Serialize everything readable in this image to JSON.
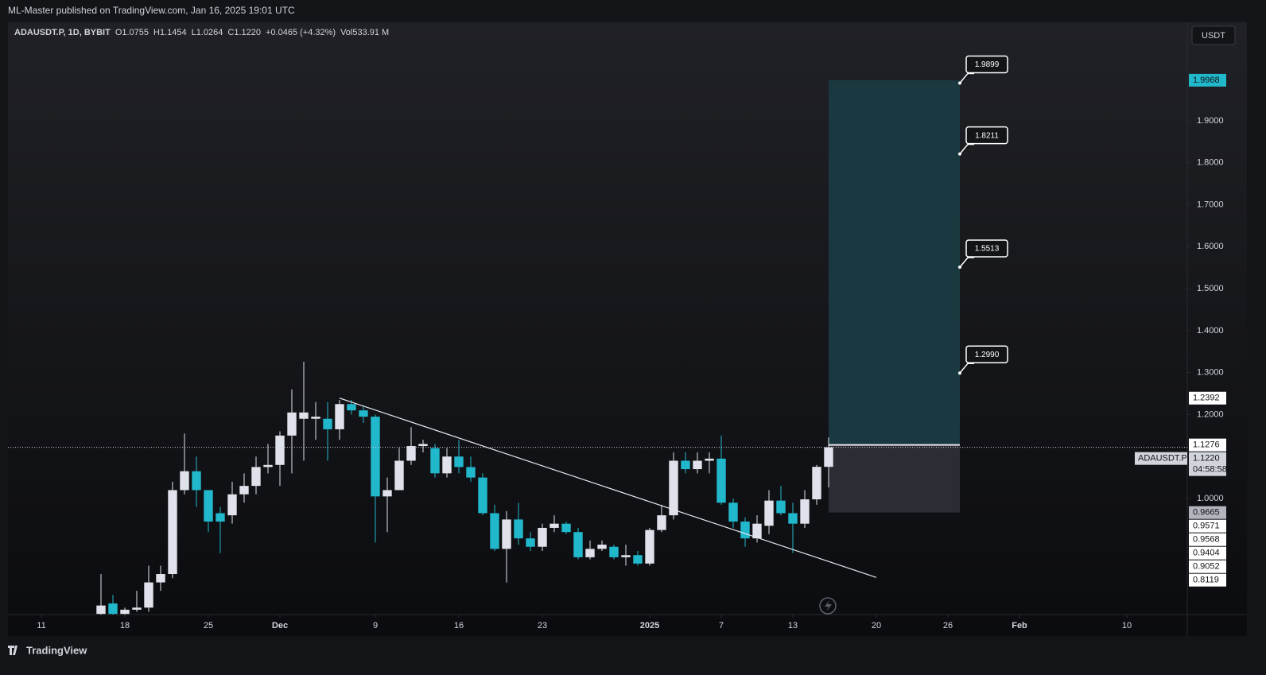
{
  "header": "ML-Master published on TradingView.com, Jan 16, 2025 19:01 UTC",
  "footer": "TradingView",
  "chart_data": {
    "type": "candlestick",
    "legend": [
      "ADAUSDT.P, 1D, BYBIT",
      "O1.0755",
      "H1.1454",
      "L1.0264",
      "C1.1220",
      "+0.0465 (+4.32%)",
      "Vol533.91 M"
    ],
    "currency": "USDT",
    "up_color": "#dfe2ea",
    "down_color": "#22b8cc",
    "x": [
      "2024-11-16",
      "2024-11-17",
      "2024-11-18",
      "2024-11-19",
      "2024-11-20",
      "2024-11-21",
      "2024-11-22",
      "2024-11-23",
      "2024-11-24",
      "2024-11-25",
      "2024-11-26",
      "2024-11-27",
      "2024-11-28",
      "2024-11-29",
      "2024-11-30",
      "2024-12-01",
      "2024-12-02",
      "2024-12-03",
      "2024-12-04",
      "2024-12-05",
      "2024-12-06",
      "2024-12-07",
      "2024-12-08",
      "2024-12-09",
      "2024-12-10",
      "2024-12-11",
      "2024-12-12",
      "2024-12-13",
      "2024-12-14",
      "2024-12-15",
      "2024-12-16",
      "2024-12-17",
      "2024-12-18",
      "2024-12-19",
      "2024-12-20",
      "2024-12-21",
      "2024-12-22",
      "2024-12-23",
      "2024-12-24",
      "2024-12-25",
      "2024-12-26",
      "2024-12-27",
      "2024-12-28",
      "2024-12-29",
      "2024-12-30",
      "2024-12-31",
      "2025-01-01",
      "2025-01-02",
      "2025-01-03",
      "2025-01-04",
      "2025-01-05",
      "2025-01-06",
      "2025-01-07",
      "2025-01-08",
      "2025-01-09",
      "2025-01-10",
      "2025-01-11",
      "2025-01-12",
      "2025-01-13",
      "2025-01-14",
      "2025-01-15",
      "2025-01-16"
    ],
    "open": [
      0.725,
      0.75,
      0.725,
      0.735,
      0.74,
      0.8,
      0.82,
      1.02,
      1.065,
      1.02,
      0.965,
      0.96,
      1.01,
      1.03,
      1.075,
      1.08,
      1.15,
      1.19,
      1.19,
      1.19,
      1.165,
      1.225,
      1.21,
      1.195,
      1.005,
      1.02,
      1.09,
      1.125,
      1.12,
      1.06,
      1.1,
      1.075,
      1.05,
      0.965,
      0.88,
      0.95,
      0.905,
      0.885,
      0.93,
      0.94,
      0.92,
      0.86,
      0.88,
      0.885,
      0.86,
      0.865,
      0.845,
      0.925,
      0.96,
      1.09,
      1.07,
      1.09,
      1.095,
      0.99,
      0.945,
      0.905,
      0.935,
      0.995,
      0.965,
      0.94,
      0.998,
      1.0755
    ],
    "high": [
      0.82,
      0.77,
      0.74,
      0.78,
      0.84,
      0.84,
      1.04,
      1.155,
      1.1,
      1.02,
      0.98,
      1.04,
      1.06,
      1.1,
      1.13,
      1.16,
      1.26,
      1.326,
      1.23,
      1.23,
      1.235,
      1.235,
      1.22,
      1.2,
      1.05,
      1.12,
      1.17,
      1.14,
      1.13,
      1.12,
      1.14,
      1.1,
      1.06,
      0.985,
      0.97,
      0.99,
      0.92,
      0.94,
      0.96,
      0.945,
      0.93,
      0.9,
      0.9,
      0.89,
      0.89,
      0.875,
      0.93,
      0.985,
      1.11,
      1.11,
      1.11,
      1.11,
      1.15,
      1.0,
      0.955,
      0.96,
      1.02,
      1.03,
      0.99,
      1.02,
      1.08,
      1.1454
    ],
    "low": [
      0.72,
      0.72,
      0.72,
      0.73,
      0.73,
      0.78,
      0.81,
      1.01,
      0.98,
      0.92,
      0.87,
      0.94,
      0.99,
      1.01,
      1.06,
      1.03,
      1.06,
      1.09,
      1.14,
      1.09,
      1.14,
      1.2,
      1.18,
      0.895,
      0.92,
      1.02,
      1.08,
      1.11,
      1.05,
      1.05,
      1.06,
      1.04,
      0.96,
      0.875,
      0.8,
      0.89,
      0.875,
      0.875,
      0.92,
      0.915,
      0.855,
      0.855,
      0.875,
      0.855,
      0.84,
      0.84,
      0.84,
      0.92,
      0.95,
      1.06,
      1.06,
      1.06,
      0.985,
      0.93,
      0.885,
      0.895,
      0.915,
      0.96,
      0.87,
      0.93,
      0.985,
      1.0264
    ],
    "close": [
      0.745,
      0.725,
      0.735,
      0.74,
      0.8,
      0.82,
      1.02,
      1.065,
      1.02,
      0.945,
      0.945,
      1.01,
      1.03,
      1.075,
      1.08,
      1.15,
      1.205,
      1.205,
      1.195,
      1.165,
      1.225,
      1.21,
      1.195,
      1.005,
      1.02,
      1.09,
      1.125,
      1.13,
      1.06,
      1.1,
      1.075,
      1.05,
      0.965,
      0.88,
      0.95,
      0.905,
      0.885,
      0.93,
      0.94,
      0.92,
      0.86,
      0.88,
      0.89,
      0.86,
      0.865,
      0.845,
      0.925,
      0.96,
      1.09,
      1.07,
      1.09,
      1.095,
      0.99,
      0.945,
      0.905,
      0.94,
      0.995,
      0.965,
      0.94,
      0.998,
      1.0755,
      1.122
    ],
    "xlim": [
      "2024-11-08",
      "2025-02-15"
    ],
    "xticks": [
      {
        "value": "2024-11-11",
        "label": "11"
      },
      {
        "value": "2024-11-18",
        "label": "18"
      },
      {
        "value": "2024-11-25",
        "label": "25"
      },
      {
        "value": "2024-12-01",
        "label": "Dec"
      },
      {
        "value": "2024-12-09",
        "label": "9"
      },
      {
        "value": "2024-12-16",
        "label": "16"
      },
      {
        "value": "2024-12-23",
        "label": "23"
      },
      {
        "value": "2025-01-01",
        "label": "2025"
      },
      {
        "value": "2025-01-07",
        "label": "7"
      },
      {
        "value": "2025-01-13",
        "label": "13"
      },
      {
        "value": "2025-01-20",
        "label": "20"
      },
      {
        "value": "2025-01-26",
        "label": "26"
      },
      {
        "value": "2025-02-01",
        "label": "Feb"
      },
      {
        "value": "2025-02-10",
        "label": "10"
      }
    ],
    "ylim": [
      0.7234,
      2.1311
    ],
    "yticks": [
      {
        "value": 1.0,
        "label": "1.0000"
      },
      {
        "value": 1.2,
        "label": "1.2000"
      },
      {
        "value": 1.3,
        "label": "1.3000"
      },
      {
        "value": 1.4,
        "label": "1.4000"
      },
      {
        "value": 1.5,
        "label": "1.5000"
      },
      {
        "value": 1.6,
        "label": "1.6000"
      },
      {
        "value": 1.7,
        "label": "1.7000"
      },
      {
        "value": 1.8,
        "label": "1.8000"
      },
      {
        "value": 1.9,
        "label": "1.9000"
      }
    ],
    "trendline": {
      "x": [
        "2024-12-06",
        "2025-01-20"
      ],
      "values": [
        1.2392,
        0.8119
      ]
    },
    "position": {
      "x": [
        "2025-01-16",
        "2025-01-27"
      ],
      "entry": 1.1276,
      "target": 1.9968,
      "stop": 0.9665
    },
    "targets": [
      1.9899,
      1.8211,
      1.5513,
      {
        "value": 1.299,
        "label": "1.2990"
      }
    ],
    "last_price": {
      "value": 1.122,
      "label": "1.1220"
    },
    "symbol_tag": "ADAUSDT.P",
    "countdown": "04:58:58",
    "levels": [
      0.9571,
      0.9568,
      0.9404,
      0.9052
    ]
  }
}
